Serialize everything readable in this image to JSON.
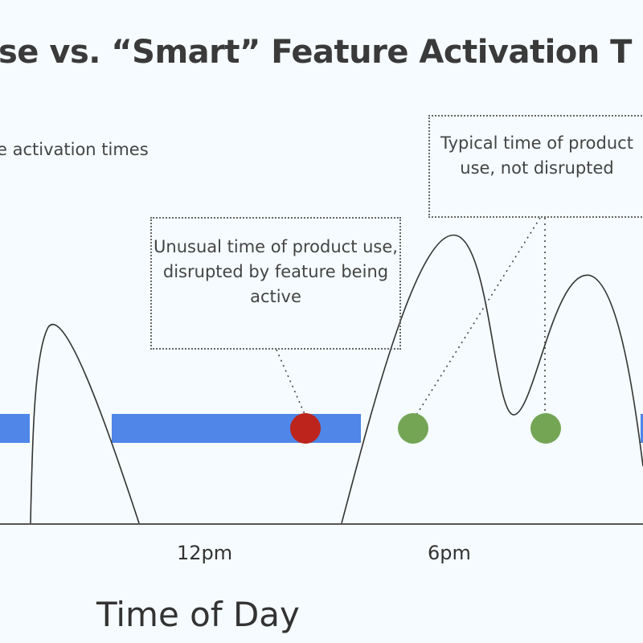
{
  "title": "se vs. “Smart” Feature Activation T",
  "legend": "e activation times",
  "callouts": {
    "unusual": "Unusual time of product use, disrupted by feature being active",
    "typical": "Typical time of product use, not disrupted"
  },
  "x_axis": {
    "ticks": [
      "12pm",
      "6pm"
    ],
    "label": "Time of Day"
  },
  "colors": {
    "activation_bar": "#4f86e8",
    "disrupted_dot": "#bc241c",
    "typical_dot": "#74a555",
    "background": "#f5fbfe"
  }
}
